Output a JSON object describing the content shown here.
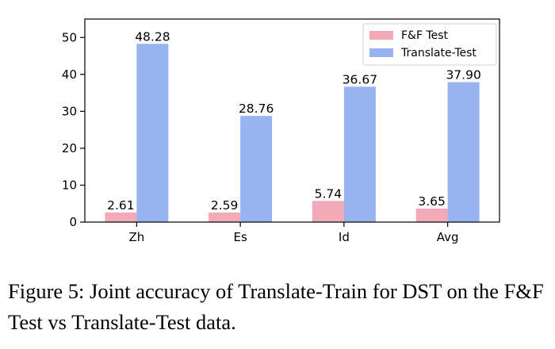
{
  "chart_data": {
    "type": "bar",
    "categories": [
      "Zh",
      "Es",
      "Id",
      "Avg"
    ],
    "series": [
      {
        "name": "F&F Test",
        "values": [
          2.61,
          2.59,
          5.74,
          3.65
        ],
        "labels": [
          "2.61",
          "2.59",
          "5.74",
          "3.65"
        ],
        "color": "#f2a9b8"
      },
      {
        "name": "Translate-Test",
        "values": [
          48.28,
          28.76,
          36.67,
          37.9
        ],
        "labels": [
          "48.28",
          "28.76",
          "36.67",
          "37.90"
        ],
        "color": "#97b4f0"
      }
    ],
    "ylim": [
      0,
      55
    ],
    "yticks": [
      0,
      10,
      20,
      30,
      40,
      50
    ],
    "legend": "top-right",
    "grid": false
  },
  "caption": "Figure 5: Joint accuracy of Translate-Train for DST on the F&F Test vs Translate-Test data."
}
